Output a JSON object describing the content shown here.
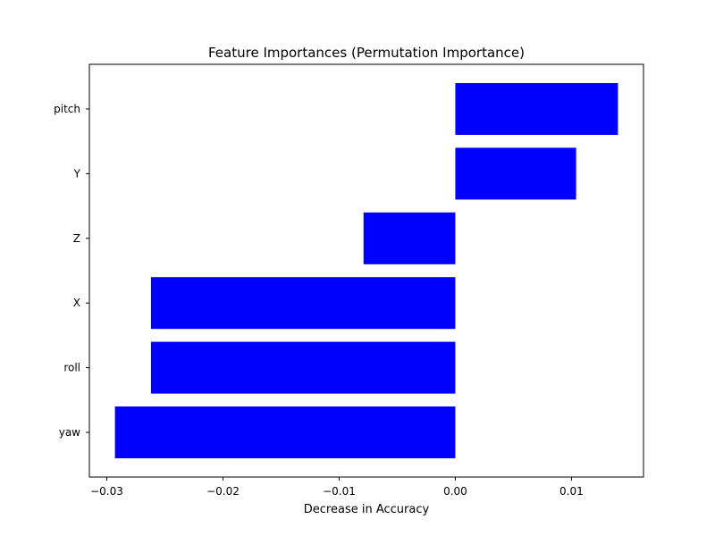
{
  "chart_data": {
    "type": "bar",
    "orientation": "horizontal",
    "title": "Feature Importances (Permutation Importance)",
    "xlabel": "Decrease in Accuracy",
    "ylabel": "",
    "categories": [
      "yaw",
      "roll",
      "X",
      "Z",
      "Y",
      "pitch"
    ],
    "values": [
      -0.0293,
      -0.0262,
      -0.0262,
      -0.0079,
      0.0104,
      0.014
    ],
    "xlim": [
      -0.0315,
      0.0162
    ],
    "x_ticks": [
      -0.03,
      -0.02,
      -0.01,
      0.0,
      0.01
    ],
    "x_tick_labels": [
      "−0.03",
      "−0.02",
      "−0.01",
      "0.00",
      "0.01"
    ],
    "bar_color": "#0000ff",
    "grid": false,
    "legend": "none"
  }
}
